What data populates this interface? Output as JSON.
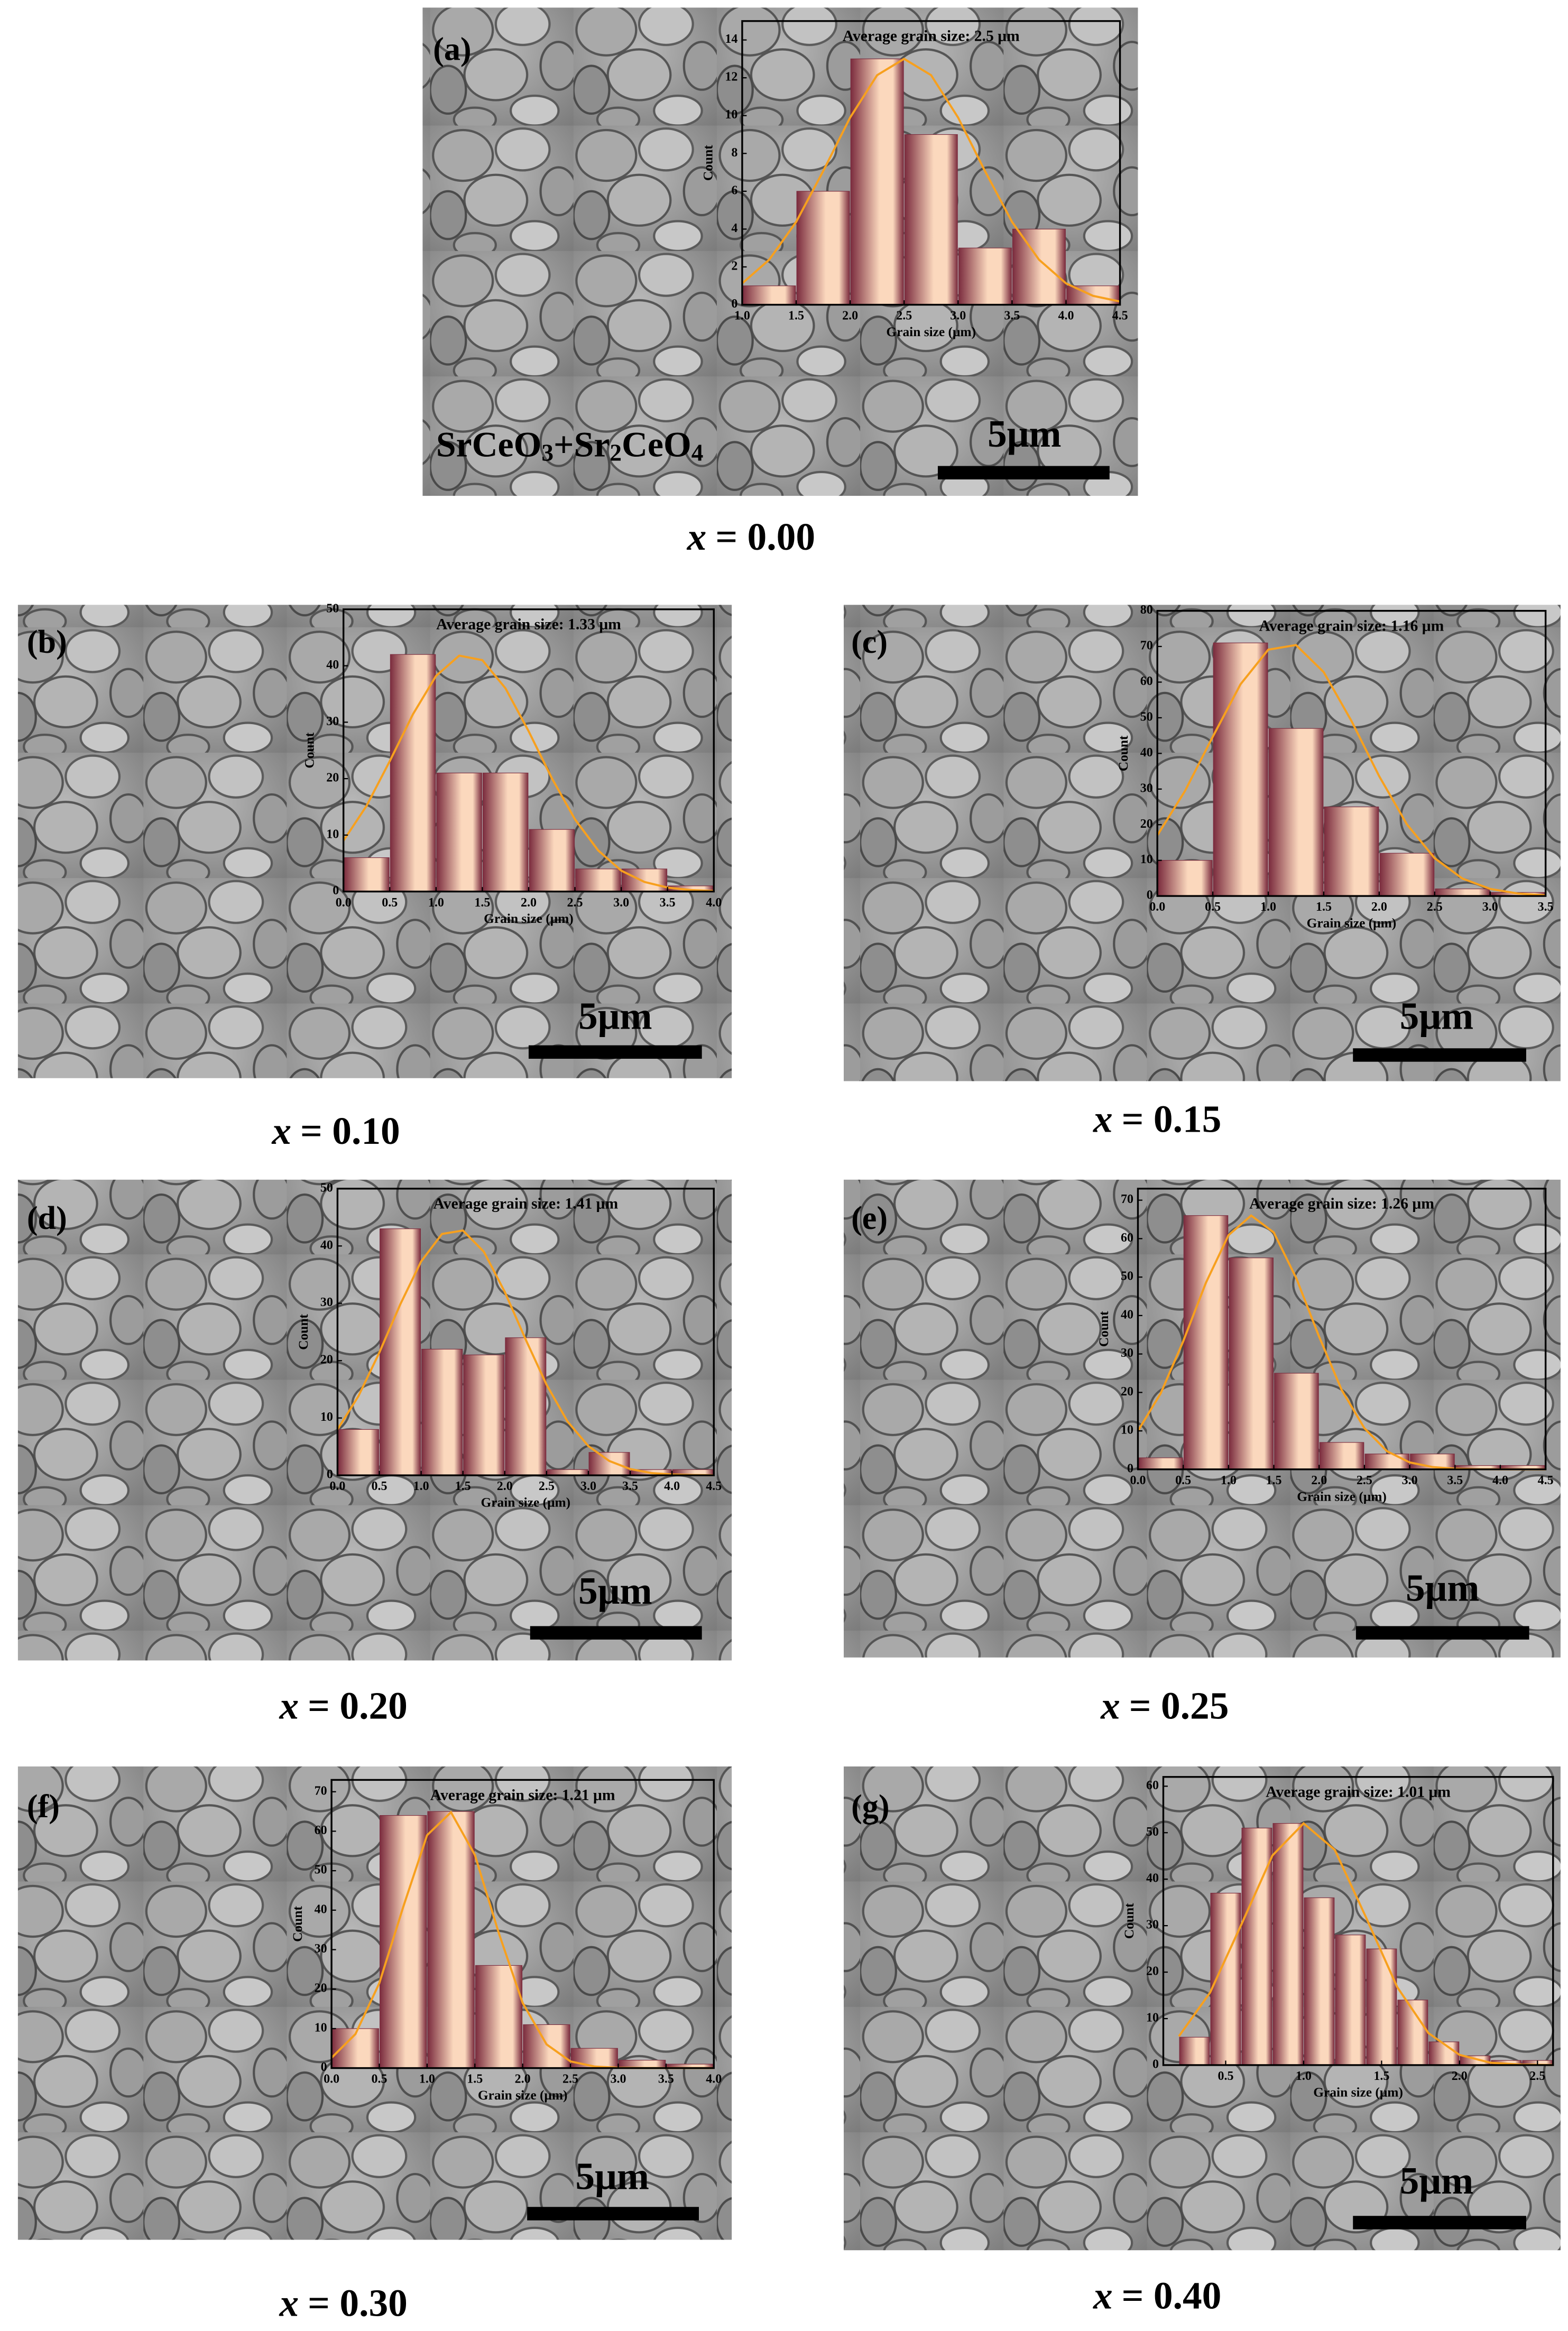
{
  "chart_data": [
    {
      "type": "histogram",
      "panel_label": "(a)",
      "annotation": "Average grain size:  2.5 μm",
      "phase_label": [
        "SrCeO",
        "3",
        "+Sr",
        "2",
        "CeO",
        "4"
      ],
      "bins": [
        1.0,
        1.5,
        2.0,
        2.5,
        3.0,
        3.5,
        4.0,
        4.5
      ],
      "counts": [
        1,
        6,
        13,
        9,
        3,
        4,
        1
      ],
      "color": "#fbd8bd",
      "edge_color": "#7b2c3e",
      "curve": {
        "color": "#f7a01e",
        "x": [
          1.0,
          1.25,
          1.5,
          1.75,
          2.0,
          2.25,
          2.5,
          2.75,
          3.0,
          3.25,
          3.5,
          3.75,
          4.0,
          4.25,
          4.5
        ],
        "values": [
          1.13,
          2.38,
          4.38,
          7.06,
          9.9,
          12.14,
          13,
          12.14,
          9.9,
          7.06,
          4.38,
          2.38,
          1.13,
          0.47,
          0.17
        ]
      },
      "xlim": [
        1.0,
        4.5
      ],
      "ylim": [
        0,
        15
      ],
      "xticks": [
        {
          "value": 1,
          "label": "1.0"
        },
        1.5,
        {
          "value": 2,
          "label": "2.0"
        },
        2.5,
        {
          "value": 3,
          "label": "3.0"
        },
        3.5,
        {
          "value": 4,
          "label": "4.0"
        },
        4.5
      ],
      "yticks": [
        0,
        2,
        4,
        6,
        8,
        10,
        12,
        14
      ],
      "xlabel": "Grain size (μm)",
      "ylabel": "Count",
      "scale_bar": "5μm",
      "caption_var": "x",
      "caption": "= 0.00"
    },
    {
      "type": "histogram",
      "panel_label": "(b)",
      "annotation": "Average grain size:  1.33 μm",
      "bins": [
        0,
        0.5,
        1.0,
        1.5,
        2.0,
        2.5,
        3.0,
        3.5,
        4.0
      ],
      "counts": [
        6,
        42,
        21,
        21,
        11,
        4,
        4,
        1
      ],
      "color": "#fbd8bd",
      "edge_color": "#7b2c3e",
      "curve": {
        "color": "#f7a01e",
        "x": [
          0,
          0.25,
          0.5,
          0.75,
          1.0,
          1.25,
          1.5,
          1.75,
          2.0,
          2.25,
          2.5,
          2.75,
          3.0,
          3.25,
          3.5,
          3.75,
          4.0
        ],
        "values": [
          9.0,
          15.2,
          23.1,
          31.4,
          38.2,
          41.8,
          41.0,
          36.0,
          28.4,
          20.1,
          12.8,
          7.3,
          3.7,
          1.7,
          0.7,
          0.26,
          0.09
        ]
      },
      "xlim": [
        0,
        4.0
      ],
      "ylim": [
        0,
        50
      ],
      "xticks": [
        {
          "value": 0,
          "label": "0.0"
        },
        0.5,
        {
          "value": 1,
          "label": "1.0"
        },
        1.5,
        {
          "value": 2,
          "label": "2.0"
        },
        2.5,
        {
          "value": 3,
          "label": "3.0"
        },
        3.5,
        {
          "value": 4,
          "label": "4.0"
        }
      ],
      "yticks": [
        0,
        10,
        20,
        30,
        40,
        50
      ],
      "xlabel": "Grain size (μm)",
      "ylabel": "Count",
      "scale_bar": "5μm",
      "caption_var": "x",
      "caption": "= 0.10"
    },
    {
      "type": "histogram",
      "panel_label": "(c)",
      "annotation": "Average grain size:  1.16 μm",
      "bins": [
        0,
        0.5,
        1.0,
        1.5,
        2.0,
        2.5,
        3.0,
        3.5
      ],
      "counts": [
        10,
        71,
        47,
        25,
        12,
        2,
        1
      ],
      "color": "#fbd8bd",
      "edge_color": "#7b2c3e",
      "curve": {
        "color": "#f7a01e",
        "x": [
          0,
          0.25,
          0.5,
          0.75,
          1.0,
          1.25,
          1.5,
          1.75,
          2.0,
          2.25,
          2.5,
          2.75,
          3.0,
          3.25,
          3.5
        ],
        "values": [
          17.0,
          29.5,
          44.7,
          59.4,
          69.1,
          70.4,
          62.8,
          49.1,
          33.6,
          20.1,
          10.6,
          4.9,
          2.0,
          0.7,
          0.2
        ]
      },
      "xlim": [
        0,
        3.5
      ],
      "ylim": [
        0,
        80
      ],
      "xticks": [
        {
          "value": 0,
          "label": "0.0"
        },
        0.5,
        {
          "value": 1,
          "label": "1.0"
        },
        1.5,
        {
          "value": 2,
          "label": "2.0"
        },
        2.5,
        {
          "value": 3,
          "label": "3.0"
        },
        3.5
      ],
      "yticks": [
        0,
        10,
        20,
        30,
        40,
        50,
        60,
        70,
        80
      ],
      "xlabel": "Grain size (μm)",
      "ylabel": "Count",
      "scale_bar": "5μm",
      "caption_var": "x",
      "caption": "= 0.15"
    },
    {
      "type": "histogram",
      "panel_label": "(d)",
      "annotation": "Average grain size:  1.41 μm",
      "bins": [
        0,
        0.5,
        1.0,
        1.5,
        2.0,
        2.5,
        3.0,
        3.5,
        4.0,
        4.5
      ],
      "counts": [
        8,
        43,
        22,
        21,
        24,
        1,
        4,
        1,
        1
      ],
      "color": "#fbd8bd",
      "edge_color": "#7b2c3e",
      "curve": {
        "color": "#f7a01e",
        "x": [
          0,
          0.25,
          0.5,
          0.75,
          1.0,
          1.25,
          1.5,
          1.75,
          2.0,
          2.25,
          2.5,
          2.75,
          3.0,
          3.25,
          3.5,
          3.75,
          4.0,
          4.25,
          4.5
        ],
        "values": [
          8.0,
          13.8,
          21.4,
          29.8,
          37.3,
          42.1,
          42.7,
          39.0,
          32.0,
          23.7,
          15.8,
          9.4,
          5.1,
          2.5,
          1.1,
          0.4,
          0.15,
          0.05,
          0.01
        ]
      },
      "xlim": [
        0,
        4.5
      ],
      "ylim": [
        0,
        50
      ],
      "xticks": [
        {
          "value": 0,
          "label": "0.0"
        },
        0.5,
        {
          "value": 1,
          "label": "1.0"
        },
        1.5,
        {
          "value": 2,
          "label": "2.0"
        },
        2.5,
        {
          "value": 3,
          "label": "3.0"
        },
        3.5,
        {
          "value": 4,
          "label": "4.0"
        },
        4.5
      ],
      "yticks": [
        0,
        10,
        20,
        30,
        40,
        50
      ],
      "xlabel": "Grain size (μm)",
      "ylabel": "Count",
      "scale_bar": "5μm",
      "caption_var": "x",
      "caption": "= 0.20"
    },
    {
      "type": "histogram",
      "panel_label": "(e)",
      "annotation": "Average grain size:  1.26 μm",
      "bins": [
        0,
        0.5,
        1.0,
        1.5,
        2.0,
        2.5,
        3.0,
        3.5,
        4.0,
        4.5
      ],
      "counts": [
        3,
        66,
        55,
        25,
        7,
        4,
        4,
        1,
        1
      ],
      "color": "#fbd8bd",
      "edge_color": "#7b2c3e",
      "curve": {
        "color": "#f7a01e",
        "x": [
          0,
          0.25,
          0.5,
          0.75,
          1.0,
          1.25,
          1.5,
          1.75,
          2.0,
          2.25,
          2.5,
          2.75,
          3.0,
          3.25,
          3.5,
          3.75,
          4.0,
          4.25,
          4.5
        ],
        "values": [
          10.0,
          19.7,
          33.3,
          48.5,
          60.9,
          66.0,
          61.6,
          49.6,
          34.5,
          20.6,
          10.7,
          4.7,
          1.8,
          0.6,
          0.17,
          0.04,
          0.01,
          0,
          0
        ]
      },
      "xlim": [
        0,
        4.5
      ],
      "ylim": [
        0,
        73
      ],
      "xticks": [
        {
          "value": 0,
          "label": "0.0"
        },
        0.5,
        {
          "value": 1,
          "label": "1.0"
        },
        1.5,
        {
          "value": 2,
          "label": "2.0"
        },
        2.5,
        {
          "value": 3,
          "label": "3.0"
        },
        3.5,
        {
          "value": 4,
          "label": "4.0"
        },
        4.5
      ],
      "yticks": [
        0,
        10,
        20,
        30,
        40,
        50,
        60,
        70
      ],
      "xlabel": "Grain size (μm)",
      "ylabel": "Count",
      "scale_bar": "5μm",
      "caption_var": "x",
      "caption": "= 0.25"
    },
    {
      "type": "histogram",
      "panel_label": "(f)",
      "annotation": "Average grain size:  1.21 μm",
      "bins": [
        0,
        0.5,
        1.0,
        1.5,
        2.0,
        2.5,
        3.0,
        3.5,
        4.0
      ],
      "counts": [
        10,
        64,
        65,
        26,
        11,
        5,
        2,
        1
      ],
      "color": "#fbd8bd",
      "edge_color": "#7b2c3e",
      "curve": {
        "color": "#f7a01e",
        "x": [
          0,
          0.25,
          0.5,
          0.75,
          1.0,
          1.25,
          1.5,
          1.75,
          2.0,
          2.25,
          2.5,
          2.75,
          3.0,
          3.25,
          3.5,
          3.75,
          4.0
        ],
        "values": [
          2.6,
          8.6,
          21.5,
          40.8,
          59.0,
          64.8,
          54.0,
          34.2,
          16.5,
          6.0,
          1.7,
          0.4,
          0.06,
          0.01,
          0,
          0,
          0
        ]
      },
      "xlim": [
        0,
        4.0
      ],
      "ylim": [
        0,
        73
      ],
      "xticks": [
        {
          "value": 0,
          "label": "0.0"
        },
        0.5,
        {
          "value": 1,
          "label": "1.0"
        },
        1.5,
        {
          "value": 2,
          "label": "2.0"
        },
        2.5,
        {
          "value": 3,
          "label": "3.0"
        },
        3.5,
        {
          "value": 4,
          "label": "4.0"
        }
      ],
      "yticks": [
        0,
        10,
        20,
        30,
        40,
        50,
        60,
        70
      ],
      "xlabel": "Grain size (μm)",
      "ylabel": "Count",
      "scale_bar": "5μm",
      "caption_var": "x",
      "caption": "= 0.30"
    },
    {
      "type": "histogram",
      "panel_label": "(g)",
      "annotation": "Average grain size:  1.01 μm",
      "bins": [
        0.2,
        0.4,
        0.6,
        0.8,
        1.0,
        1.2,
        1.4,
        1.6,
        1.8,
        2.0,
        2.2,
        2.4,
        2.6
      ],
      "counts": [
        6,
        37,
        51,
        52,
        36,
        28,
        25,
        14,
        5,
        2,
        1,
        1
      ],
      "color": "#fbd8bd",
      "edge_color": "#7b2c3e",
      "curve": {
        "color": "#f7a01e",
        "x": [
          0.2,
          0.4,
          0.6,
          0.8,
          1.0,
          1.2,
          1.4,
          1.6,
          1.8,
          2.0,
          2.2,
          2.4,
          2.6
        ],
        "values": [
          6.2,
          15.6,
          30.2,
          45.1,
          52.0,
          46.3,
          31.8,
          16.8,
          6.9,
          2.2,
          0.5,
          0.1,
          0.02
        ]
      },
      "xlim": [
        0.1,
        2.6
      ],
      "ylim": [
        0,
        62
      ],
      "xticks": [
        0.5,
        {
          "value": 1,
          "label": "1.0"
        },
        1.5,
        {
          "value": 2,
          "label": "2.0"
        },
        2.5
      ],
      "yticks": [
        0,
        10,
        20,
        30,
        40,
        50,
        60
      ],
      "xlabel": "Grain size (μm)",
      "ylabel": "Count",
      "scale_bar": "5μm",
      "caption_var": "x",
      "caption": "= 0.40"
    }
  ]
}
